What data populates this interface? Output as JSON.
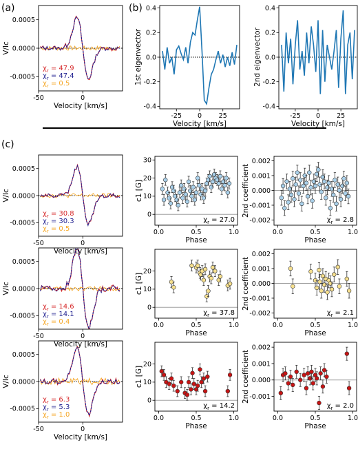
{
  "panel_labels": [
    "(a)",
    "(b)",
    "(c)"
  ],
  "colors": {
    "red": "#d62728",
    "navy": "#1f1f8f",
    "orange": "#f5a623",
    "steel": "#1f77b4",
    "lightblue": "#a9d0ea",
    "yellow": "#f7e08e",
    "darkred": "#c81414",
    "gray": "#a0a0a0"
  },
  "chart_data": [
    {
      "id": "a",
      "type": "line",
      "xlabel": "Velocity [km/s]",
      "ylabel": "V/Ic",
      "xlim": [
        -50,
        45
      ],
      "ylim": [
        -0.00075,
        0.00075
      ],
      "xticks": [
        "-50",
        "0"
      ],
      "yticks": [
        "0.0005",
        "0.0000",
        "-0.0005"
      ],
      "series": [
        {
          "color": "red"
        },
        {
          "color": "navy"
        },
        {
          "color": "orange"
        }
      ],
      "annotations": [
        {
          "text": "χ",
          "sub": "r",
          "value": "= 47.9",
          "color": "red"
        },
        {
          "text": "χ",
          "sub": "r",
          "value": "= 47.4",
          "color": "navy"
        },
        {
          "text": "χ",
          "sub": "r",
          "value": "= 0.5",
          "color": "orange"
        }
      ]
    },
    {
      "id": "b1",
      "type": "line",
      "xlabel": "Velocity [km/s]",
      "ylabel": "1st eigenvector",
      "xlim": [
        -43,
        43
      ],
      "ylim": [
        -0.42,
        0.42
      ],
      "xticks": [
        "-25",
        "0",
        "25"
      ],
      "yticks": [
        "0.4",
        "0.2",
        "0.0",
        "-0.2",
        "-0.4"
      ],
      "x": [
        -40,
        -37.5,
        -35,
        -32.5,
        -30,
        -27.5,
        -25,
        -22.5,
        -20,
        -17.5,
        -15,
        -12.5,
        -10,
        -7.5,
        -5,
        -2.5,
        0,
        2.5,
        5,
        7.5,
        10,
        12.5,
        15,
        17.5,
        20,
        22.5,
        25,
        27.5,
        30,
        32.5,
        35,
        37.5,
        40
      ],
      "values": [
        0.05,
        -0.1,
        0.08,
        -0.05,
        0.0,
        -0.14,
        0.06,
        0.09,
        0.03,
        -0.02,
        0.08,
        -0.05,
        0.12,
        0.2,
        0.18,
        0.3,
        0.41,
        0.05,
        -0.35,
        -0.38,
        -0.25,
        -0.14,
        -0.1,
        -0.02,
        0.05,
        -0.05,
        0.02,
        -0.08,
        0.0,
        -0.07,
        0.04,
        -0.06,
        0.1
      ]
    },
    {
      "id": "b2",
      "type": "line",
      "xlabel": "Velocity [km/s]",
      "ylabel": "2nd eigenvector",
      "xlim": [
        -43,
        43
      ],
      "ylim": [
        -0.42,
        0.42
      ],
      "xticks": [
        "-25",
        "0",
        "25"
      ],
      "yticks": [
        "0.4",
        "0.2",
        "0.0",
        "-0.2",
        "-0.4"
      ],
      "x": [
        -40,
        -37.5,
        -35,
        -32.5,
        -30,
        -27.5,
        -25,
        -22.5,
        -20,
        -17.5,
        -15,
        -12.5,
        -10,
        -7.5,
        -5,
        -2.5,
        0,
        2.5,
        5,
        7.5,
        10,
        12.5,
        15,
        17.5,
        20,
        22.5,
        25,
        27.5,
        30,
        32.5,
        35,
        37.5,
        40
      ],
      "values": [
        0.1,
        -0.28,
        0.2,
        -0.05,
        0.15,
        -0.22,
        0.1,
        0.3,
        -0.1,
        0.05,
        -0.15,
        0.2,
        -0.05,
        0.25,
        0.1,
        -0.12,
        0.3,
        -0.3,
        0.22,
        -0.2,
        0.1,
        0.0,
        -0.1,
        0.05,
        0.22,
        -0.25,
        0.15,
        0.38,
        -0.3,
        0.1,
        0.2,
        -0.18,
        0.22
      ]
    },
    {
      "id": "c1",
      "type": "line",
      "xlabel": "Velocity [km/s]",
      "ylabel": "V/Ic",
      "xlim": [
        -50,
        45
      ],
      "ylim": [
        -0.00075,
        0.00075
      ],
      "xticks": [
        "-50",
        "0"
      ],
      "yticks": [
        "0.0005",
        "0.0000",
        "-0.0005"
      ],
      "series": [
        {
          "color": "red"
        },
        {
          "color": "navy"
        },
        {
          "color": "orange"
        }
      ],
      "annotations": [
        {
          "text": "χ",
          "sub": "r",
          "value": "= 30.8",
          "color": "red"
        },
        {
          "text": "χ",
          "sub": "r",
          "value": "= 30.3",
          "color": "navy"
        },
        {
          "text": "χ",
          "sub": "r",
          "value": "= 0.5",
          "color": "orange"
        }
      ]
    },
    {
      "id": "c2",
      "type": "line",
      "xlabel": "Velocity [km/s]",
      "ylabel": "V/Ic",
      "xlim": [
        -50,
        45
      ],
      "ylim": [
        -0.00075,
        0.00075
      ],
      "xticks": [
        "-50",
        "0"
      ],
      "yticks": [
        "0.0005",
        "0.0000",
        "-0.0005"
      ],
      "series": [
        {
          "color": "red"
        },
        {
          "color": "navy"
        },
        {
          "color": "orange"
        }
      ],
      "annotations": [
        {
          "text": "χ",
          "sub": "r",
          "value": "= 14.6",
          "color": "red"
        },
        {
          "text": "χ",
          "sub": "r",
          "value": "= 14.1",
          "color": "navy"
        },
        {
          "text": "χ",
          "sub": "r",
          "value": "= 0.4",
          "color": "orange"
        }
      ]
    },
    {
      "id": "c3",
      "type": "line",
      "xlabel": "Velocity [km/s]",
      "ylabel": "V/Ic",
      "xlim": [
        -50,
        45
      ],
      "ylim": [
        -0.00075,
        0.00075
      ],
      "xticks": [
        "-50",
        "0"
      ],
      "yticks": [
        "0.0005",
        "0.0000",
        "-0.0005"
      ],
      "series": [
        {
          "color": "red"
        },
        {
          "color": "navy"
        },
        {
          "color": "orange"
        }
      ],
      "annotations": [
        {
          "text": "χ",
          "sub": "r",
          "value": "= 6.3",
          "color": "red"
        },
        {
          "text": "χ",
          "sub": "r",
          "value": "= 5.3",
          "color": "navy"
        },
        {
          "text": "χ",
          "sub": "r",
          "value": "= 1.0",
          "color": "orange"
        }
      ]
    },
    {
      "id": "s1",
      "type": "scatter",
      "xlabel": "Phase",
      "ylabel": "c1 [G]",
      "xlim": [
        -0.05,
        1.05
      ],
      "ylim": [
        -6,
        32
      ],
      "xticks": [
        "0.0",
        "0.5",
        "1.0"
      ],
      "yticks": [
        "30",
        "20",
        "10",
        "0"
      ],
      "marker_color": "lightblue",
      "annotation": {
        "text": "χ",
        "sub": "r",
        "value": "= 27.0"
      },
      "x": [
        0.05,
        0.07,
        0.09,
        0.12,
        0.14,
        0.16,
        0.18,
        0.2,
        0.22,
        0.24,
        0.26,
        0.28,
        0.3,
        0.32,
        0.34,
        0.36,
        0.38,
        0.4,
        0.42,
        0.44,
        0.46,
        0.48,
        0.5,
        0.52,
        0.54,
        0.56,
        0.58,
        0.6,
        0.62,
        0.64,
        0.66,
        0.68,
        0.7,
        0.72,
        0.74,
        0.76,
        0.78,
        0.8,
        0.82,
        0.84,
        0.86,
        0.88,
        0.9,
        0.92,
        0.94
      ],
      "values": [
        14,
        8,
        19,
        12,
        9,
        6,
        15,
        13,
        10,
        8,
        5,
        12,
        16,
        9,
        14,
        11,
        7,
        18,
        13,
        10,
        15,
        8,
        12,
        20,
        16,
        11,
        14,
        9,
        13,
        17,
        19,
        21,
        15,
        18,
        22,
        20,
        19,
        17,
        21,
        14,
        18,
        16,
        20,
        12,
        17
      ],
      "errors": [
        3,
        3,
        3,
        3,
        3,
        3,
        3,
        3,
        3,
        3,
        3,
        3,
        3,
        3,
        3,
        3,
        3,
        3,
        3,
        3,
        3,
        3,
        3,
        3,
        3,
        3,
        3,
        3,
        3,
        3,
        3,
        3,
        3,
        3,
        3,
        3,
        3,
        3,
        3,
        3,
        3,
        3,
        3,
        3,
        3
      ]
    },
    {
      "id": "s2",
      "type": "scatter",
      "xlabel": "Phase",
      "ylabel": "2nd coefficient",
      "xlim": [
        -0.05,
        1.05
      ],
      "ylim": [
        -0.00235,
        0.0023
      ],
      "xticks": [
        "0.0",
        "0.5",
        "1.0"
      ],
      "yticks": [
        "0.002",
        "0.001",
        "0.000",
        "-0.001",
        "-0.002"
      ],
      "marker_color": "lightblue",
      "annotation": {
        "text": "χ",
        "sub": "r",
        "value": "= 2.8"
      },
      "x": [
        0.05,
        0.07,
        0.09,
        0.12,
        0.14,
        0.16,
        0.18,
        0.2,
        0.22,
        0.24,
        0.26,
        0.28,
        0.3,
        0.32,
        0.34,
        0.36,
        0.38,
        0.4,
        0.42,
        0.44,
        0.46,
        0.48,
        0.5,
        0.52,
        0.54,
        0.56,
        0.58,
        0.6,
        0.62,
        0.64,
        0.66,
        0.68,
        0.7,
        0.72,
        0.74,
        0.76,
        0.78,
        0.8,
        0.82,
        0.84,
        0.86,
        0.88,
        0.9,
        0.92,
        0.94
      ],
      "values": [
        -0.0005,
        0.0003,
        -0.0012,
        0.0006,
        -0.0008,
        0.0001,
        -0.0003,
        0.0008,
        -0.0006,
        0.0004,
        0.0012,
        -0.0002,
        0.0007,
        -0.0009,
        0.0003,
        0.001,
        0.0005,
        -0.0004,
        0.0012,
        0.0002,
        -0.0007,
        0.0006,
        0.0003,
        0.0011,
        0.0014,
        0.0004,
        -0.0001,
        0.0009,
        0.0006,
        -0.0005,
        0.0002,
        0.0005,
        -0.0012,
        0.0001,
        -0.0003,
        0.0007,
        -0.0009,
        0.0004,
        0.0,
        -0.0006,
        0.0003,
        0.0008,
        -0.0002,
        0.0005,
        -0.0004
      ],
      "errors": [
        0.0005,
        0.0005,
        0.0005,
        0.0005,
        0.0005,
        0.0005,
        0.0005,
        0.0005,
        0.0005,
        0.0005,
        0.0005,
        0.0005,
        0.0005,
        0.0005,
        0.0005,
        0.0005,
        0.0005,
        0.0005,
        0.0005,
        0.0005,
        0.0005,
        0.0005,
        0.0005,
        0.0005,
        0.0005,
        0.0005,
        0.0005,
        0.0005,
        0.0005,
        0.0005,
        0.0005,
        0.0005,
        0.0005,
        0.0005,
        0.0005,
        0.0005,
        0.0005,
        0.0005,
        0.0005,
        0.0005,
        0.0005,
        0.0005,
        0.0005,
        0.0005,
        0.0005
      ]
    },
    {
      "id": "s3",
      "type": "scatter",
      "xlabel": "Phase",
      "ylabel": "c1 [G]",
      "xlim": [
        -0.05,
        1.05
      ],
      "ylim": [
        -6,
        32
      ],
      "xticks": [
        "0.0",
        "0.5",
        "1.0"
      ],
      "yticks": [
        "20",
        "10",
        "0"
      ],
      "marker_color": "yellow",
      "annotation": {
        "text": "χ",
        "sub": "r",
        "value": "= 37.8"
      },
      "x": [
        0.17,
        0.2,
        0.44,
        0.5,
        0.52,
        0.55,
        0.56,
        0.58,
        0.6,
        0.62,
        0.64,
        0.66,
        0.68,
        0.7,
        0.72,
        0.75,
        0.8,
        0.82,
        0.92,
        0.95
      ],
      "values": [
        14,
        11,
        23,
        22,
        23,
        19,
        18,
        20,
        15,
        21,
        6,
        9,
        17,
        16,
        22,
        20,
        15,
        17,
        12,
        13
      ],
      "errors": [
        3,
        3,
        3,
        3,
        3,
        3,
        3,
        3,
        3,
        3,
        3,
        3,
        3,
        3,
        3,
        3,
        3,
        3,
        3,
        3
      ]
    },
    {
      "id": "s4",
      "type": "scatter",
      "xlabel": "Phase",
      "ylabel": "2nd coefficient",
      "xlim": [
        -0.05,
        1.05
      ],
      "ylim": [
        -0.00235,
        0.0023
      ],
      "xticks": [
        "0.0",
        "0.5",
        "1.0"
      ],
      "yticks": [
        "0.002",
        "0.001",
        "0.000",
        "-0.001",
        "-0.002"
      ],
      "marker_color": "yellow",
      "annotation": {
        "text": "χ",
        "sub": "r",
        "value": "= 2.1"
      },
      "x": [
        0.17,
        0.2,
        0.44,
        0.5,
        0.52,
        0.55,
        0.56,
        0.58,
        0.6,
        0.62,
        0.64,
        0.66,
        0.68,
        0.7,
        0.72,
        0.75,
        0.8,
        0.82,
        0.92,
        0.95
      ],
      "values": [
        0.001,
        -0.0002,
        0.0008,
        0.0002,
        -0.0003,
        0.0009,
        0.0001,
        -0.0005,
        0.0005,
        -0.0001,
        0.0003,
        -0.0006,
        0.0002,
        0.0,
        -0.0004,
        0.0006,
        0.0011,
        -0.0002,
        0.0003,
        -0.0005
      ],
      "errors": [
        0.0005,
        0.0005,
        0.0005,
        0.0005,
        0.0005,
        0.0005,
        0.0005,
        0.0005,
        0.0005,
        0.0005,
        0.0005,
        0.0005,
        0.0005,
        0.0005,
        0.0005,
        0.0005,
        0.0005,
        0.0005,
        0.0005,
        0.0005
      ]
    },
    {
      "id": "s5",
      "type": "scatter",
      "xlabel": "Phase",
      "ylabel": "c1 [G]",
      "xlim": [
        -0.05,
        1.05
      ],
      "ylim": [
        -6,
        32
      ],
      "xticks": [
        "0.0",
        "0.5",
        "1.0"
      ],
      "yticks": [
        "20",
        "10",
        "0"
      ],
      "marker_color": "darkred",
      "annotation": {
        "text": "χ",
        "sub": "r",
        "value": "= 14.2"
      },
      "x": [
        0.04,
        0.07,
        0.1,
        0.14,
        0.17,
        0.2,
        0.25,
        0.3,
        0.35,
        0.38,
        0.4,
        0.43,
        0.45,
        0.47,
        0.5,
        0.52,
        0.55,
        0.57,
        0.6,
        0.62,
        0.65,
        0.92,
        0.95
      ],
      "values": [
        16,
        14,
        10,
        9,
        12,
        8,
        5,
        10,
        4,
        3,
        10,
        6,
        15,
        9,
        6,
        8,
        17,
        10,
        12,
        5,
        13,
        5,
        14
      ],
      "errors": [
        3,
        3,
        3,
        3,
        3,
        3,
        3,
        3,
        3,
        3,
        3,
        3,
        3,
        3,
        3,
        3,
        3,
        3,
        3,
        3,
        3,
        3,
        3
      ]
    },
    {
      "id": "s6",
      "type": "scatter",
      "xlabel": "Phase",
      "ylabel": "2nd coefficient",
      "xlim": [
        -0.05,
        1.05
      ],
      "ylim": [
        -0.0019,
        0.0023
      ],
      "xticks": [
        "0.0",
        "0.5",
        "1.0"
      ],
      "yticks": [
        "0.002",
        "0.001",
        "0.000",
        "-0.001"
      ],
      "marker_color": "darkred",
      "annotation": {
        "text": "χ",
        "sub": "r",
        "value": "= 2.0"
      },
      "x": [
        0.04,
        0.07,
        0.1,
        0.14,
        0.17,
        0.2,
        0.25,
        0.3,
        0.35,
        0.38,
        0.4,
        0.43,
        0.45,
        0.47,
        0.5,
        0.52,
        0.55,
        0.57,
        0.6,
        0.62,
        0.65,
        0.92,
        0.95
      ],
      "values": [
        -0.0008,
        0.0003,
        0.0004,
        -0.0002,
        0.0002,
        -0.0003,
        0.0005,
        0.0,
        0.0003,
        -0.0005,
        0.0004,
        0.0001,
        0.0005,
        -0.0002,
        0.0003,
        0.0001,
        -0.0014,
        0.0004,
        -0.0004,
        0.0006,
        0.0002,
        0.0016,
        -0.0005
      ],
      "errors": [
        0.0004,
        0.0004,
        0.0004,
        0.0004,
        0.0004,
        0.0004,
        0.0004,
        0.0004,
        0.0004,
        0.0004,
        0.0004,
        0.0004,
        0.0004,
        0.0004,
        0.0004,
        0.0004,
        0.0004,
        0.0004,
        0.0004,
        0.0004,
        0.0004,
        0.0004,
        0.0004
      ]
    }
  ]
}
